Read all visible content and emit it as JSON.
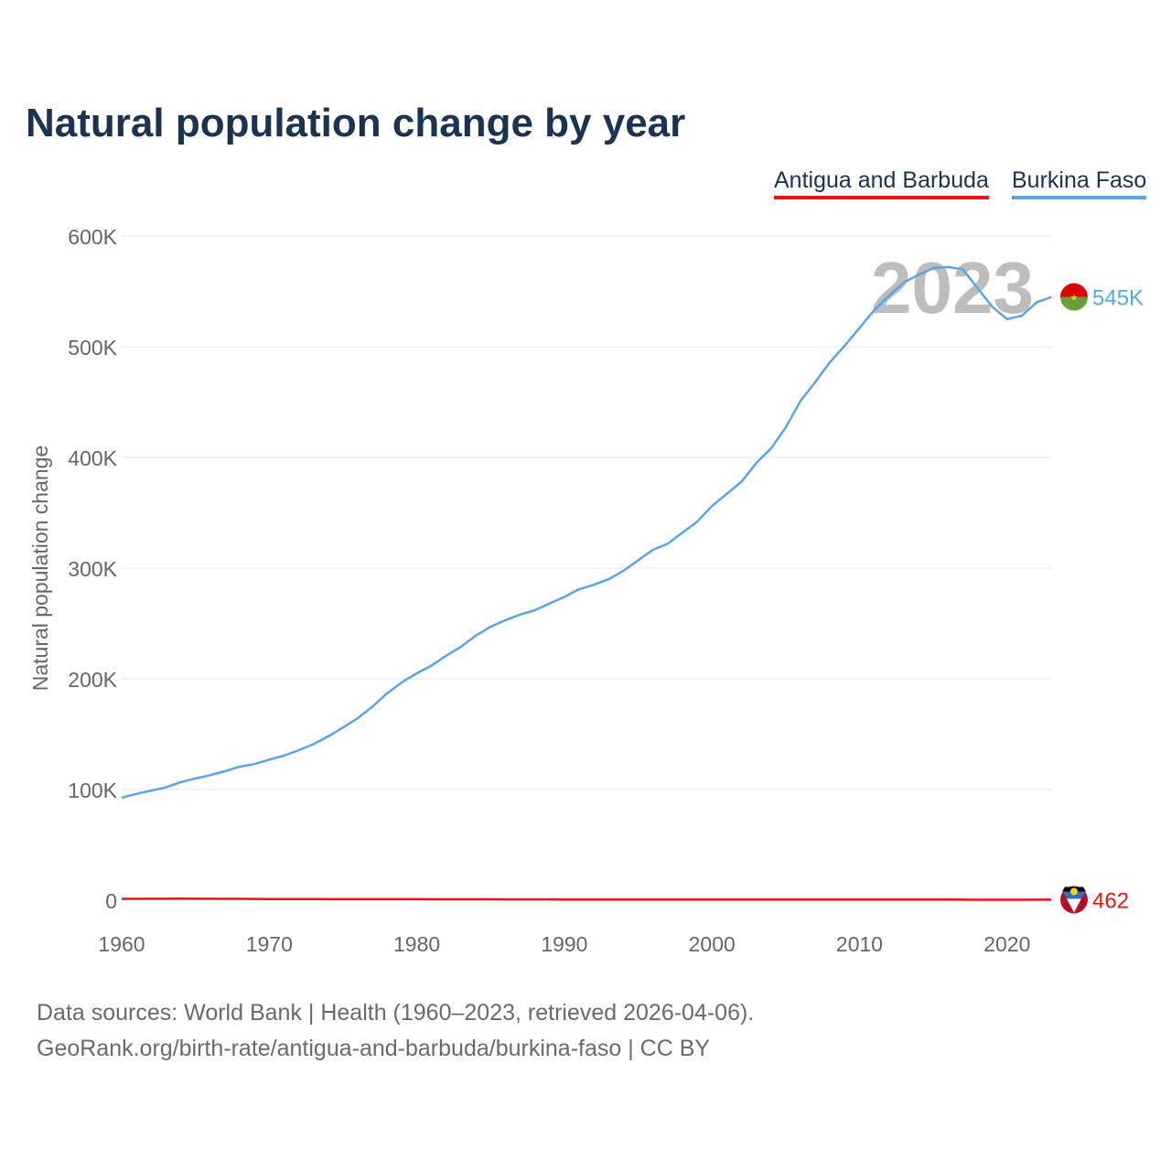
{
  "chart_data": {
    "type": "line",
    "title": "Natural population change by year",
    "ylabel": "Natural population change",
    "xlabel": "",
    "ylim": [
      0,
      600000
    ],
    "xlim": [
      1960,
      2023
    ],
    "yticks": [
      {
        "v": 0,
        "label": "0"
      },
      {
        "v": 100000,
        "label": "100K"
      },
      {
        "v": 200000,
        "label": "200K"
      },
      {
        "v": 300000,
        "label": "300K"
      },
      {
        "v": 400000,
        "label": "400K"
      },
      {
        "v": 500000,
        "label": "500K"
      },
      {
        "v": 600000,
        "label": "600K"
      }
    ],
    "xticks": [
      {
        "v": 1960,
        "label": "1960"
      },
      {
        "v": 1970,
        "label": "1970"
      },
      {
        "v": 1980,
        "label": "1980"
      },
      {
        "v": 1990,
        "label": "1990"
      },
      {
        "v": 2000,
        "label": "2000"
      },
      {
        "v": 2010,
        "label": "2010"
      },
      {
        "v": 2020,
        "label": "2020"
      }
    ],
    "year_watermark": "2023",
    "grid": true,
    "legend_position": "top-right",
    "x_start": 1960,
    "series": [
      {
        "name": "Antigua and Barbuda",
        "color": "#ee1111",
        "end_label": "462",
        "values": [
          1200,
          1250,
          1300,
          1350,
          1400,
          1350,
          1300,
          1250,
          1200,
          1150,
          1100,
          1100,
          1050,
          1000,
          950,
          950,
          950,
          900,
          900,
          950,
          900,
          850,
          850,
          850,
          850,
          800,
          750,
          750,
          750,
          750,
          700,
          700,
          650,
          650,
          650,
          700,
          700,
          700,
          700,
          650,
          650,
          650,
          600,
          600,
          600,
          600,
          600,
          600,
          600,
          600,
          600,
          600,
          600,
          600,
          550,
          550,
          550,
          500,
          450,
          450,
          450,
          450,
          470,
          462
        ]
      },
      {
        "name": "Burkina Faso",
        "color": "#5aa5ea",
        "end_label": "545K",
        "values": [
          92600,
          96000,
          99000,
          102000,
          106600,
          110000,
          113000,
          116500,
          120700,
          123000,
          127000,
          130600,
          135500,
          141000,
          148000,
          156000,
          164500,
          175000,
          187000,
          197000,
          205000,
          212000,
          221000,
          229000,
          239000,
          247000,
          253000,
          258000,
          262000,
          268000,
          274000,
          281000,
          285000,
          290000,
          297500,
          307000,
          316500,
          322000,
          332000,
          342000,
          356000,
          367000,
          378000,
          395000,
          408000,
          427000,
          451000,
          468000,
          486000,
          501000,
          517000,
          533000,
          546000,
          558000,
          565000,
          571000,
          572000,
          570000,
          553000,
          536000,
          525000,
          528000,
          540000,
          545000
        ]
      }
    ]
  },
  "source": {
    "line1": "Data sources: World Bank | Health (1960–2023, retrieved 2026-04-06).",
    "line2": "GeoRank.org/birth-rate/antigua-and-barbuda/burkina-faso | CC BY"
  }
}
